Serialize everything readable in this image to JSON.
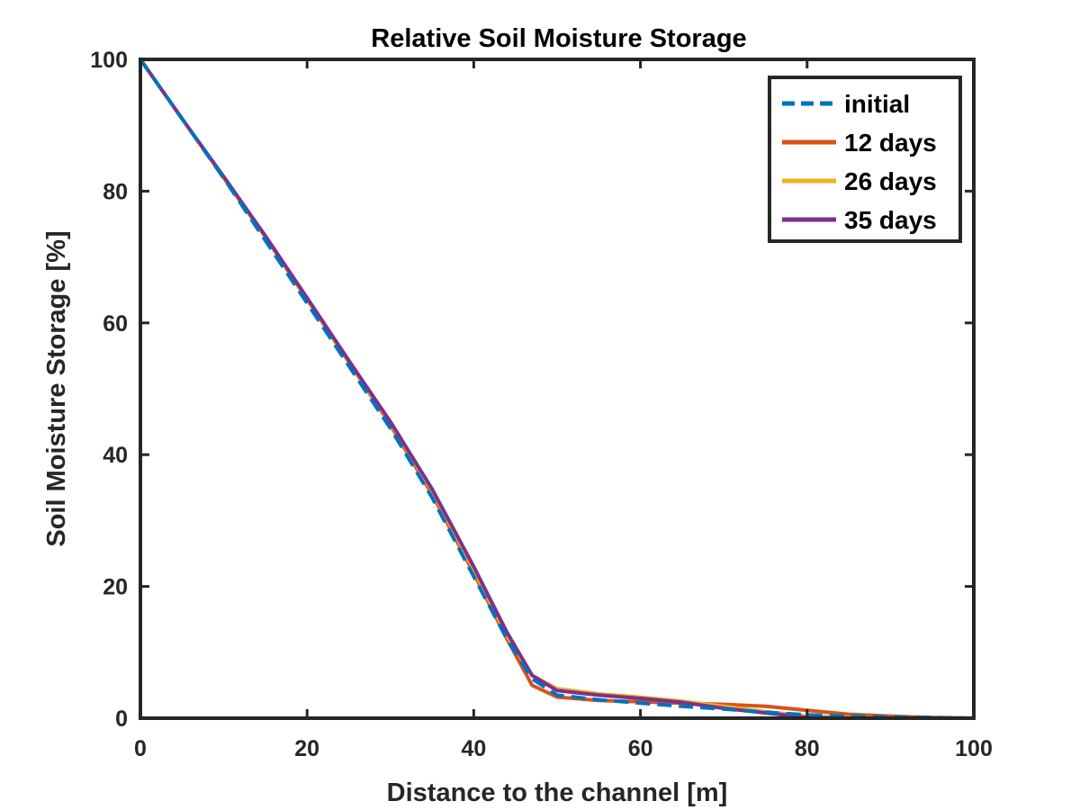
{
  "chart_data": {
    "type": "line",
    "title": "Relative Soil Moisture Storage",
    "xlabel": "Distance to the channel [m]",
    "ylabel": "Soil Moisture Storage [%]",
    "xlim": [
      0,
      100
    ],
    "ylim": [
      0,
      100
    ],
    "xticks": [
      0,
      20,
      40,
      60,
      80,
      100
    ],
    "yticks": [
      0,
      20,
      40,
      60,
      80,
      100
    ],
    "xtick_labels": [
      "0",
      "20",
      "40",
      "60",
      "80",
      "100"
    ],
    "ytick_labels": [
      "0",
      "20",
      "40",
      "60",
      "80",
      "100"
    ],
    "grid": false,
    "legend_position": "top-right",
    "series": [
      {
        "name": "initial",
        "color": "#0072BD",
        "style": "dashed",
        "x": [
          0,
          5,
          10,
          15,
          20,
          25,
          30,
          35,
          40,
          44,
          47,
          50,
          55,
          60,
          65,
          70,
          75,
          80,
          85,
          90,
          95,
          100
        ],
        "y": [
          100,
          91,
          82,
          72.5,
          63,
          53.5,
          44,
          33.5,
          21.5,
          12,
          6,
          3.5,
          2.8,
          2.3,
          1.8,
          1.4,
          0.9,
          0.5,
          0.3,
          0.2,
          0.1,
          0
        ]
      },
      {
        "name": "12 days",
        "color": "#D95319",
        "style": "solid",
        "x": [
          0,
          5,
          10,
          15,
          20,
          25,
          30,
          35,
          40,
          44,
          47,
          50,
          55,
          60,
          65,
          70,
          75,
          80,
          85,
          90,
          95,
          100
        ],
        "y": [
          100,
          91,
          82,
          73,
          63.5,
          54,
          44.5,
          34,
          22,
          12,
          5,
          3.2,
          2.7,
          2.5,
          2.3,
          2.1,
          1.8,
          1.2,
          0.6,
          0.3,
          0.1,
          0
        ]
      },
      {
        "name": "26 days",
        "color": "#EDB120",
        "style": "solid",
        "x": [
          0,
          5,
          10,
          15,
          20,
          25,
          30,
          35,
          40,
          44,
          47,
          50,
          55,
          60,
          65,
          70,
          75,
          80,
          85,
          90,
          95,
          100
        ],
        "y": [
          100,
          91,
          82,
          73,
          63.5,
          54,
          44.8,
          34.5,
          22.5,
          12.5,
          6.5,
          4.5,
          3.7,
          3.2,
          2.6,
          1.8,
          1.0,
          0.3,
          0.1,
          0,
          0,
          0
        ]
      },
      {
        "name": "35 days",
        "color": "#7E2F8E",
        "style": "solid",
        "x": [
          0,
          5,
          10,
          15,
          20,
          25,
          30,
          35,
          40,
          44,
          47,
          50,
          55,
          60,
          65,
          70,
          75,
          80,
          85,
          90,
          95,
          100
        ],
        "y": [
          100,
          91,
          82.2,
          73.2,
          63.8,
          54.3,
          45,
          34.8,
          23,
          13,
          6.5,
          4.2,
          3.5,
          3.0,
          2.4,
          1.5,
          0.8,
          0.1,
          0,
          0,
          0,
          0
        ]
      }
    ]
  }
}
